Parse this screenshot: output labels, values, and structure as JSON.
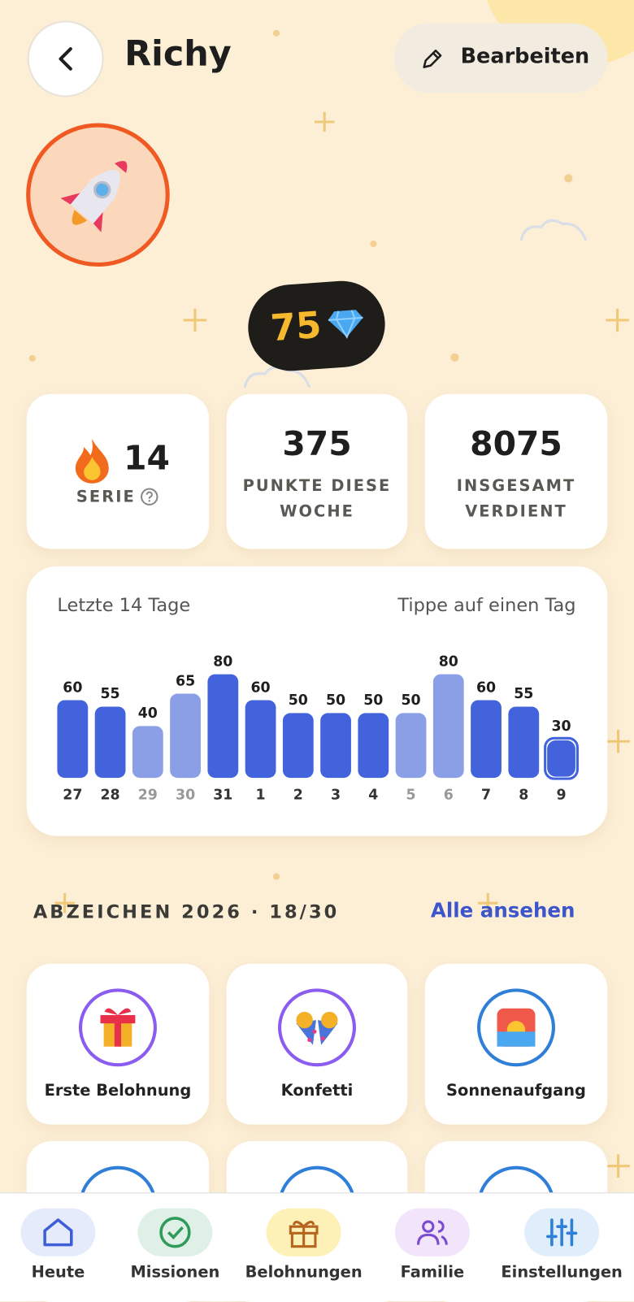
{
  "header": {
    "title": "Richy",
    "edit_button": "Bearbeiten"
  },
  "gems": 75,
  "stats": [
    {
      "value": 14,
      "label": "SERIE"
    },
    {
      "value": 375,
      "label": "PUNKTE DIESE WOCHE"
    },
    {
      "value": 8075,
      "label": "INSGESAMT VERDIENT"
    }
  ],
  "chart_data": {
    "type": "bar",
    "title": "Letzte 14 Tage",
    "subtitle": "Tippe auf einen Tag",
    "categories": [
      "27",
      "28",
      "29",
      "30",
      "31",
      "1",
      "2",
      "3",
      "4",
      "5",
      "6",
      "7",
      "8",
      "9"
    ],
    "values": [
      60,
      55,
      40,
      65,
      80,
      60,
      50,
      50,
      50,
      50,
      80,
      60,
      55,
      30
    ],
    "colors": [
      "#4263db",
      "#4263db",
      "#8a9fe6",
      "#8a9fe6",
      "#4263db",
      "#4263db",
      "#4263db",
      "#4263db",
      "#4263db",
      "#8a9fe6",
      "#8a9fe6",
      "#4263db",
      "#4263db",
      "#4263db"
    ],
    "selected": "9"
  },
  "badges": {
    "title": "ABZEICHEN 2026 · 18/30",
    "link": "Alle ansehen",
    "items": [
      "Erste Belohnung",
      "Konfetti",
      "Sonnenaufgang"
    ]
  },
  "nav": [
    "Heute",
    "Missionen",
    "Belohnungen",
    "Familie",
    "Einstellungen"
  ]
}
